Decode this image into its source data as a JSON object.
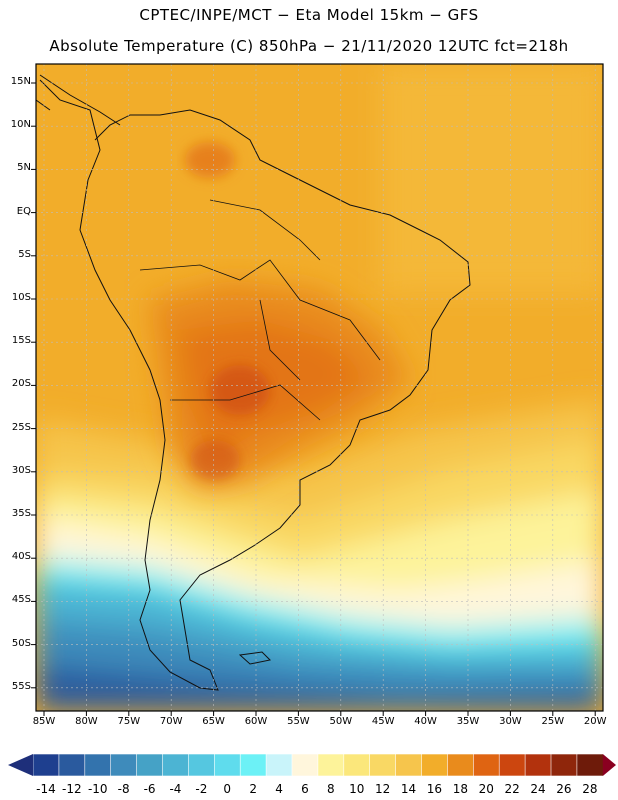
{
  "header": {
    "line1": "CPTEC/INPE/MCT −  Eta Model 15km − GFS",
    "line2": "Absolute Temperature (C) 850hPa − 21/11/2020 12UTC fct=218h"
  },
  "axes": {
    "latitudes": [
      "15N",
      "10N",
      "5N",
      "EQ",
      "5S",
      "10S",
      "15S",
      "20S",
      "25S",
      "30S",
      "35S",
      "40S",
      "45S",
      "50S",
      "55S"
    ],
    "longitudes": [
      "85W",
      "80W",
      "75W",
      "70W",
      "65W",
      "60W",
      "55W",
      "50W",
      "45W",
      "40W",
      "35W",
      "30W",
      "25W",
      "20W"
    ]
  },
  "colorbar": {
    "labels": [
      "-14",
      "-12",
      "-10",
      "-8",
      "-6",
      "-4",
      "-2",
      "0",
      "2",
      "4",
      "6",
      "8",
      "10",
      "12",
      "14",
      "16",
      "18",
      "20",
      "22",
      "24",
      "26",
      "28"
    ],
    "colors": [
      "#1e3f8f",
      "#2a5a9e",
      "#3373ad",
      "#3e8bbb",
      "#45a2c6",
      "#4cb4d3",
      "#55c7e0",
      "#5fdced",
      "#6cf1f6",
      "#c9f4fa",
      "#fff6dc",
      "#fdf39a",
      "#fbe77b",
      "#f9d864",
      "#f6c54c",
      "#f2ad2a",
      "#e98b1c",
      "#df6412",
      "#cc460f",
      "#b2320d",
      "#8f260b",
      "#6e1b0a"
    ],
    "under_color": "#1e2f7a",
    "over_color": "#8a0020"
  }
}
